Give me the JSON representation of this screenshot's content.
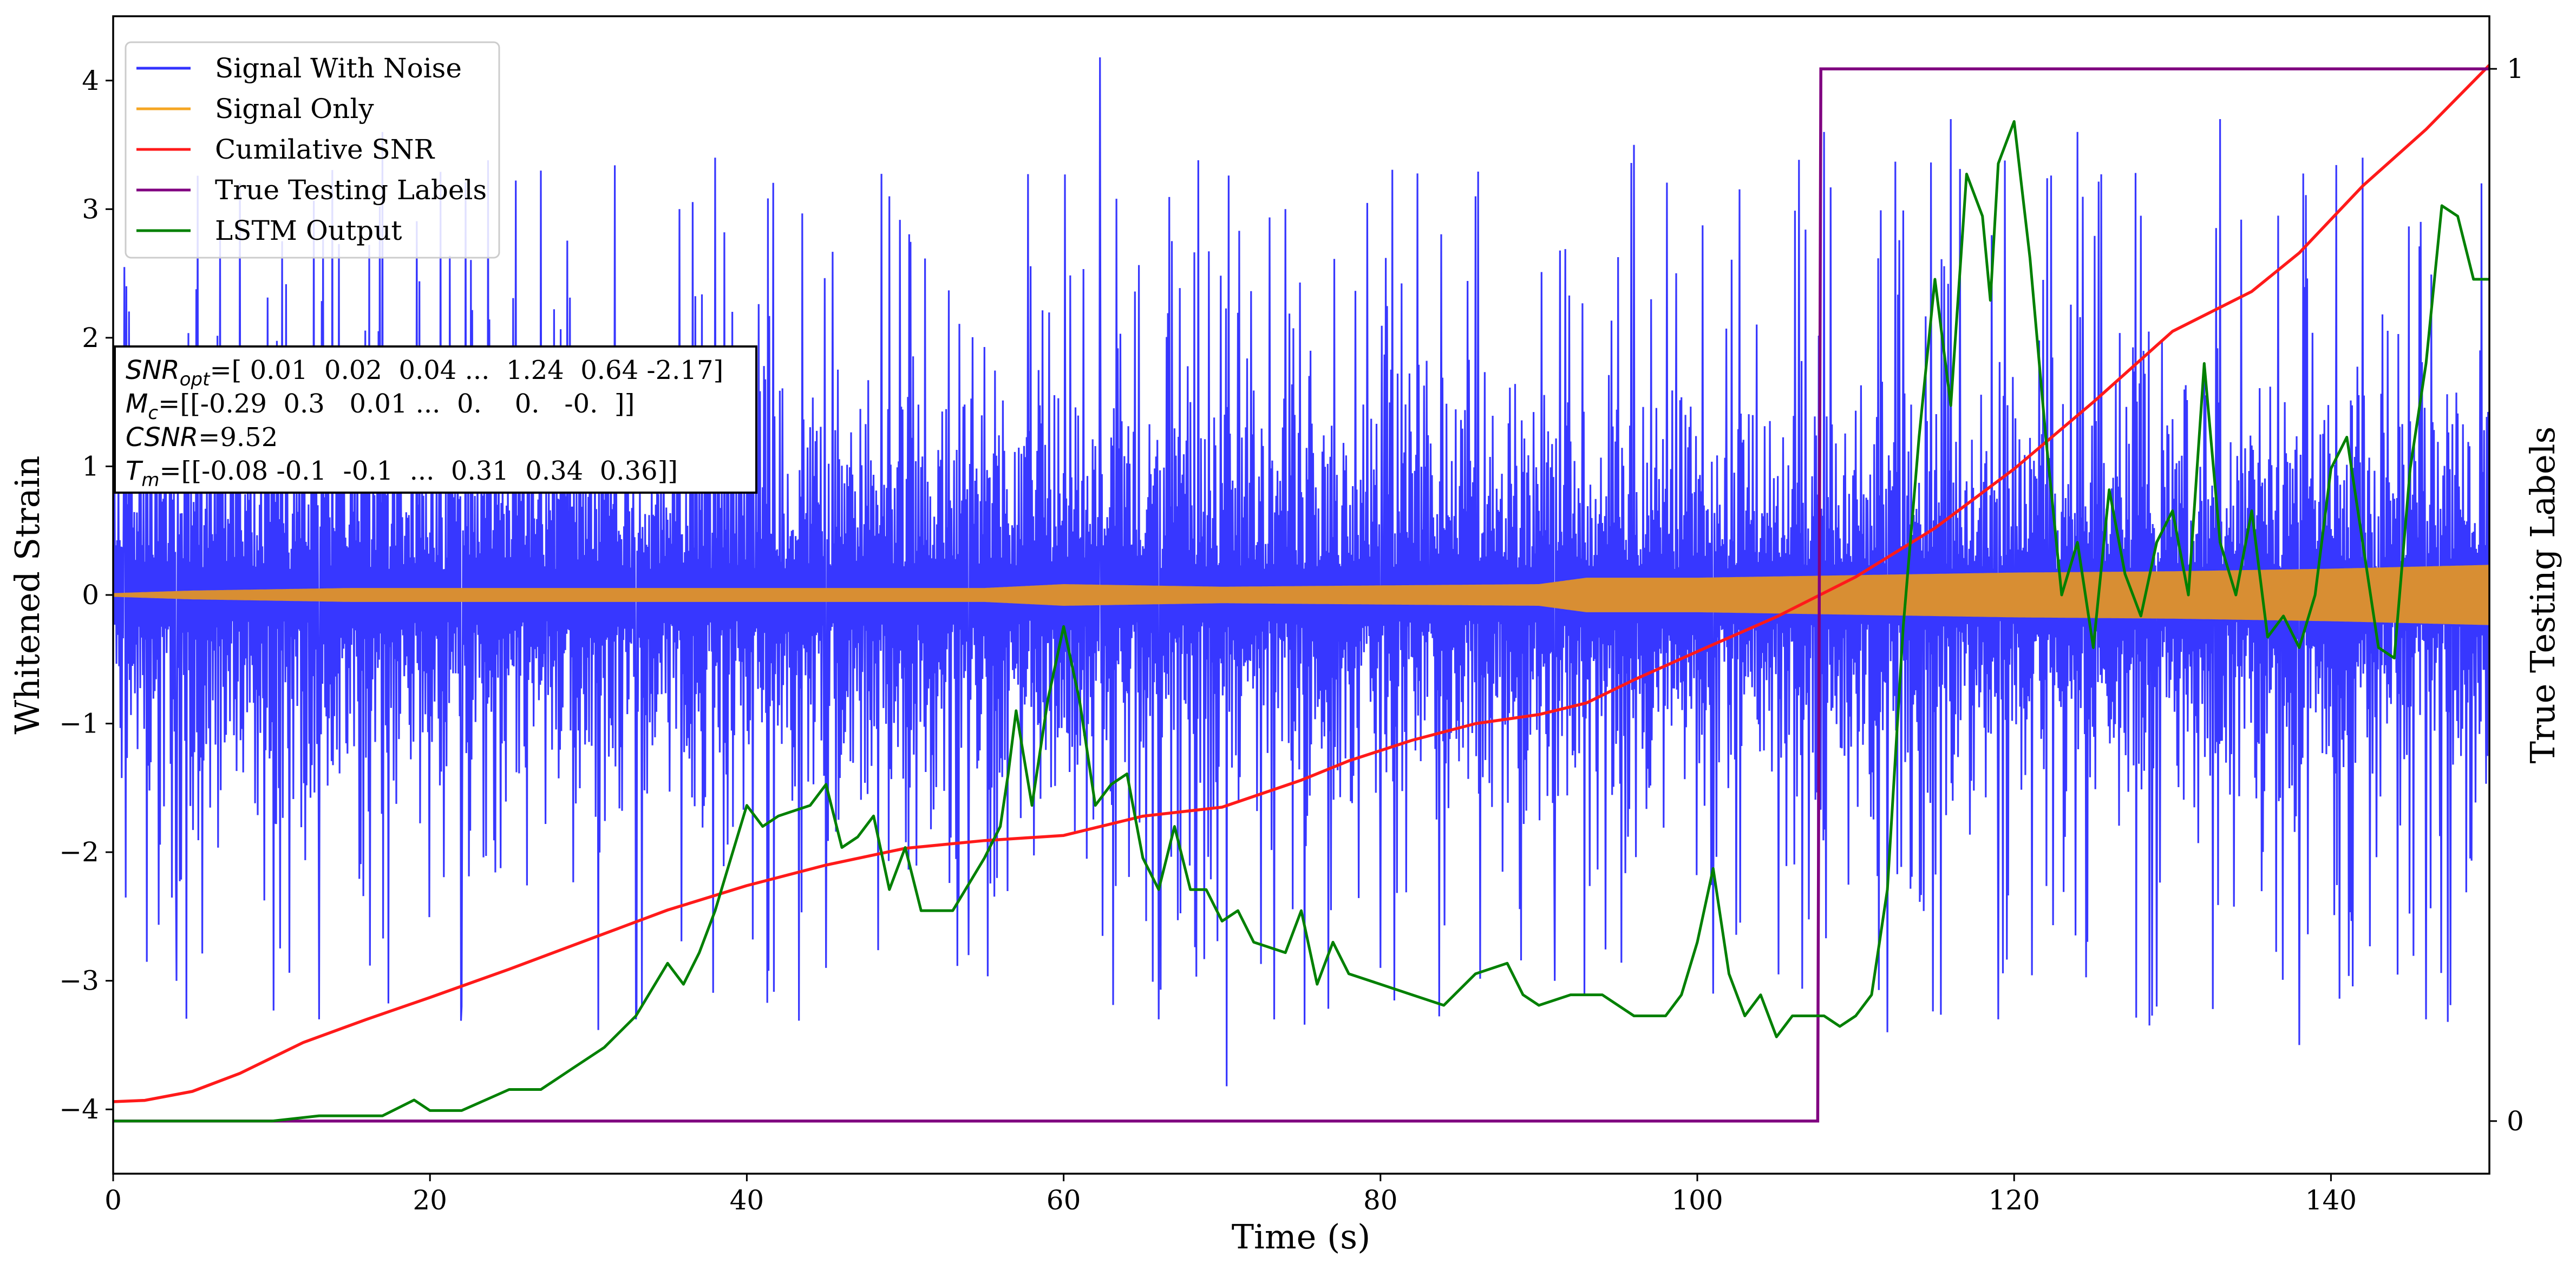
{
  "chart_data": {
    "type": "line",
    "xlabel": "Time (s)",
    "ylabel": "Whitened Strain",
    "y2label": "True Testing Labels",
    "xlim": [
      0,
      150
    ],
    "ylim": [
      -4.5,
      4.5
    ],
    "y2lim": [
      -0.05,
      1.05
    ],
    "x_ticks": [
      0,
      20,
      40,
      60,
      80,
      100,
      120,
      140
    ],
    "y_ticks": [
      -4,
      -3,
      -2,
      -1,
      0,
      1,
      2,
      3,
      4
    ],
    "y2_ticks": [
      0,
      1
    ],
    "grid": false,
    "legend_position": "top-left",
    "series": [
      {
        "name": "Signal With Noise",
        "color": "#3333ff",
        "axis": "left",
        "style": "dense noisy line; bulk within about ±1.7, spikes reaching about ±3.5, max 4.18 near x=62.3, min -3.82 near x=70.3",
        "x": [
          0.7,
          4,
          8,
          13,
          17,
          22,
          27,
          33,
          38,
          45,
          49,
          54,
          62.3,
          66,
          70.3,
          74,
          80,
          86,
          91,
          96,
          101,
          108,
          112,
          116,
          119,
          124,
          129,
          133,
          138,
          142,
          146,
          149.5
        ],
        "y": [
          2.55,
          -3.0,
          3.2,
          -3.3,
          3.6,
          -3.2,
          3.3,
          -3.3,
          3.4,
          -2.9,
          3.1,
          -2.8,
          4.18,
          -3.3,
          -3.82,
          3.0,
          -2.9,
          3.1,
          -3.0,
          3.5,
          -3.1,
          3.6,
          -3.4,
          3.7,
          -3.3,
          3.6,
          -3.2,
          3.7,
          -3.5,
          3.4,
          -3.3,
          3.2
        ]
      },
      {
        "name": "Signal Only",
        "color": "#f5a623",
        "axis": "left",
        "style": "oscillating envelope",
        "x": [
          0,
          5,
          15,
          30,
          45,
          55,
          60,
          70,
          80,
          90,
          93,
          100,
          110,
          120,
          130,
          140,
          150
        ],
        "amplitude": [
          0.01,
          0.03,
          0.05,
          0.05,
          0.05,
          0.05,
          0.08,
          0.06,
          0.07,
          0.08,
          0.13,
          0.13,
          0.15,
          0.17,
          0.18,
          0.2,
          0.23
        ]
      },
      {
        "name": "Cumilative SNR",
        "color": "#ff1a1a",
        "axis": "left",
        "x": [
          0,
          2,
          5,
          8,
          12,
          16,
          20,
          25,
          30,
          35,
          40,
          45,
          50,
          55,
          60,
          65,
          70,
          75,
          78,
          82,
          86,
          90,
          93,
          96,
          100,
          105,
          110,
          115,
          120,
          125,
          130,
          135,
          138,
          142,
          146,
          150
        ],
        "y": [
          -3.94,
          -3.93,
          -3.86,
          -3.72,
          -3.48,
          -3.3,
          -3.13,
          -2.91,
          -2.68,
          -2.45,
          -2.26,
          -2.1,
          -1.97,
          -1.91,
          -1.87,
          -1.72,
          -1.65,
          -1.44,
          -1.29,
          -1.13,
          -1.0,
          -0.93,
          -0.84,
          -0.66,
          -0.44,
          -0.17,
          0.14,
          0.52,
          0.98,
          1.5,
          2.05,
          2.36,
          2.66,
          3.18,
          3.62,
          4.12
        ]
      },
      {
        "name": "True Testing Labels",
        "color": "#800080",
        "axis": "right",
        "x": [
          0,
          107.6,
          107.8,
          150
        ],
        "y": [
          0,
          0,
          1,
          1
        ]
      },
      {
        "name": "LSTM Output",
        "color": "#008000",
        "axis": "right",
        "x": [
          0,
          10,
          13,
          17,
          19,
          20,
          22,
          25,
          27,
          29,
          31,
          33,
          35,
          36,
          37,
          38,
          39,
          40,
          41,
          42,
          44,
          45,
          46,
          47,
          48,
          49,
          50,
          51,
          53,
          55,
          56,
          56.5,
          57,
          58,
          59,
          60,
          61,
          62,
          63,
          64,
          65,
          66,
          67,
          68,
          69,
          70,
          71,
          72,
          74,
          75,
          76,
          77,
          78,
          80,
          82,
          84,
          86,
          88,
          89,
          90,
          92,
          94,
          96,
          97,
          98,
          99,
          100,
          101,
          102,
          103,
          104,
          105,
          106,
          107,
          108,
          109,
          110,
          111,
          112,
          113,
          114,
          115,
          116,
          117,
          118,
          118.5,
          119,
          120,
          121,
          122,
          123,
          124,
          125,
          126,
          127,
          128,
          129,
          130,
          131,
          132,
          133,
          134,
          135,
          136,
          137,
          138,
          139,
          140,
          141,
          142,
          143,
          144,
          145,
          146,
          147,
          148,
          149,
          150
        ],
        "y": [
          0,
          0,
          0.005,
          0.005,
          0.02,
          0.01,
          0.01,
          0.03,
          0.03,
          0.05,
          0.07,
          0.1,
          0.15,
          0.13,
          0.16,
          0.2,
          0.25,
          0.3,
          0.28,
          0.29,
          0.3,
          0.32,
          0.26,
          0.27,
          0.29,
          0.22,
          0.26,
          0.2,
          0.2,
          0.25,
          0.28,
          0.33,
          0.39,
          0.3,
          0.4,
          0.47,
          0.4,
          0.3,
          0.32,
          0.33,
          0.25,
          0.22,
          0.28,
          0.22,
          0.22,
          0.19,
          0.2,
          0.17,
          0.16,
          0.2,
          0.13,
          0.17,
          0.14,
          0.13,
          0.12,
          0.11,
          0.14,
          0.15,
          0.12,
          0.11,
          0.12,
          0.12,
          0.1,
          0.1,
          0.1,
          0.12,
          0.17,
          0.24,
          0.14,
          0.1,
          0.12,
          0.08,
          0.1,
          0.1,
          0.1,
          0.09,
          0.1,
          0.12,
          0.22,
          0.47,
          0.65,
          0.8,
          0.68,
          0.9,
          0.86,
          0.78,
          0.91,
          0.95,
          0.82,
          0.65,
          0.5,
          0.55,
          0.45,
          0.6,
          0.52,
          0.48,
          0.55,
          0.58,
          0.5,
          0.72,
          0.55,
          0.5,
          0.58,
          0.46,
          0.48,
          0.45,
          0.5,
          0.62,
          0.65,
          0.55,
          0.45,
          0.44,
          0.62,
          0.72,
          0.87,
          0.86,
          0.8,
          0.8
        ]
      }
    ],
    "annotation": {
      "lines": [
        {
          "label_main": "SNR",
          "label_sub": "opt",
          "value": "=[ 0.01  0.02  0.04 ...  1.24  0.64 -2.17]"
        },
        {
          "label_main": "M",
          "label_sub": "c",
          "value": "=[[-0.29  0.3   0.01 ...  0.    0.   -0.  ]]"
        },
        {
          "label_main": "CSNR",
          "label_sub": "",
          "value": "=9.52"
        },
        {
          "label_main": "T",
          "label_sub": "m",
          "value": "=[[-0.08 -0.1  -0.1  ...  0.31  0.34  0.36]]"
        }
      ]
    }
  }
}
